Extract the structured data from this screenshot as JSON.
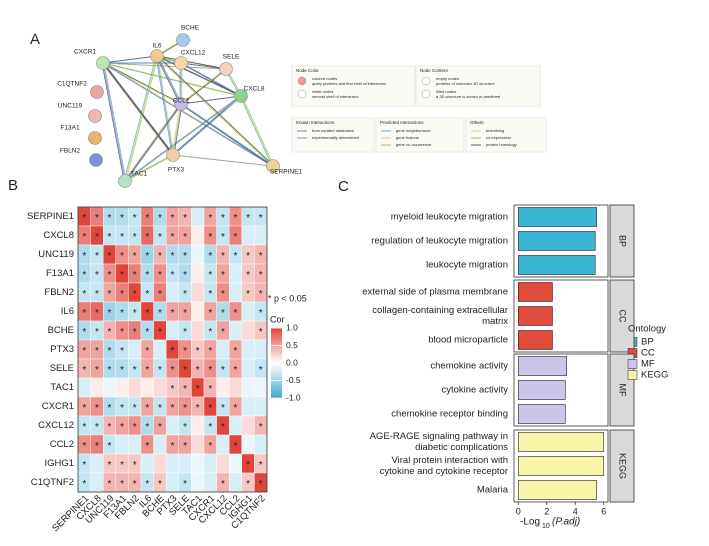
{
  "panels": [
    "A",
    "B",
    "C"
  ],
  "network": {
    "nodes": [
      "BCHE",
      "IL6",
      "CXCR1",
      "CXCL12",
      "SELE",
      "C1QTNF2",
      "CXCL8",
      "UNC119",
      "CCL2",
      "F13A1",
      "FBLN2",
      "PTX3",
      "TAC1",
      "SERPINE1"
    ]
  },
  "network_legend": {
    "groups": [
      {
        "title": "Node Color",
        "items": [
          "colored nodes",
          "query proteins and first shell of interactors",
          "white nodes",
          "second shell of interactors"
        ]
      },
      {
        "title": "Node Content",
        "items": [
          "empty nodes",
          "proteins of unknown 3D structure",
          "filled nodes",
          "a 3D structure is known or predicted"
        ]
      },
      {
        "title": "Known Interactions",
        "items": [
          "from curated databases",
          "experimentally determined"
        ]
      },
      {
        "title": "Predicted Interactions",
        "items": [
          "gene neighborhood",
          "gene fusions",
          "gene co-occurrence"
        ]
      },
      {
        "title": "Others",
        "items": [
          "textmining",
          "co-expression",
          "protein homology"
        ]
      }
    ]
  },
  "chart_data": [
    {
      "type": "heatmap",
      "categories": [
        "SERPINE1",
        "CXCL8",
        "UNC119",
        "F13A1",
        "FBLN2",
        "IL6",
        "BCHE",
        "PTX3",
        "SELE",
        "TAC1",
        "CXCR1",
        "CXCL12",
        "CCL2",
        "IGHG1",
        "C1QTNF2"
      ],
      "values": [
        [
          1,
          0.7,
          -0.4,
          -0.4,
          -0.3,
          0.7,
          -0.4,
          0.5,
          0.4,
          -0.2,
          0.5,
          -0.3,
          0.6,
          -0.3,
          -0.3
        ],
        [
          0.7,
          1,
          -0.3,
          -0.3,
          -0.3,
          0.8,
          -0.3,
          0.5,
          0.5,
          0.1,
          0.6,
          -0.3,
          0.7,
          -0.2,
          -0.2
        ],
        [
          -0.4,
          -0.3,
          1,
          0.6,
          0.5,
          -0.5,
          0.4,
          -0.4,
          -0.4,
          -0.1,
          -0.4,
          0.4,
          -0.3,
          0.3,
          0.4
        ],
        [
          -0.4,
          -0.3,
          0.6,
          1,
          0.7,
          -0.4,
          0.6,
          -0.3,
          -0.4,
          0.1,
          -0.3,
          0.5,
          -0.2,
          0.3,
          0.4
        ],
        [
          -0.3,
          -0.3,
          0.5,
          0.7,
          1,
          -0.3,
          0.7,
          -0.2,
          -0.3,
          0.2,
          -0.3,
          0.6,
          -0.2,
          0.3,
          0.4
        ],
        [
          0.7,
          0.8,
          -0.5,
          -0.4,
          -0.3,
          1,
          -0.4,
          0.5,
          0.5,
          0.1,
          0.5,
          -0.4,
          0.6,
          -0.2,
          -0.3
        ],
        [
          -0.4,
          -0.3,
          0.4,
          0.6,
          0.7,
          -0.4,
          1,
          -0.2,
          -0.3,
          0.2,
          -0.3,
          0.5,
          -0.2,
          0.2,
          0.3
        ],
        [
          0.5,
          0.5,
          -0.4,
          -0.3,
          -0.2,
          0.5,
          -0.2,
          1,
          0.6,
          0.3,
          0.5,
          -0.2,
          0.5,
          -0.2,
          -0.2
        ],
        [
          0.4,
          0.5,
          -0.4,
          -0.4,
          -0.3,
          0.5,
          -0.3,
          0.6,
          1,
          0.4,
          0.6,
          -0.3,
          0.5,
          -0.2,
          -0.3
        ],
        [
          -0.2,
          0.1,
          -0.1,
          0.1,
          0.2,
          0.1,
          0.2,
          0.3,
          0.4,
          1,
          0.4,
          0.1,
          0.2,
          -0.1,
          -0.1
        ],
        [
          0.5,
          0.6,
          -0.4,
          -0.3,
          -0.3,
          0.5,
          -0.3,
          0.5,
          0.6,
          0.4,
          1,
          -0.3,
          0.5,
          -0.2,
          -0.2
        ],
        [
          -0.3,
          -0.3,
          0.4,
          0.5,
          0.6,
          -0.4,
          0.5,
          -0.2,
          -0.3,
          0.1,
          -0.3,
          1,
          -0.2,
          0.2,
          0.4
        ],
        [
          0.6,
          0.7,
          -0.3,
          -0.2,
          -0.2,
          0.6,
          -0.2,
          0.5,
          0.5,
          0.2,
          0.5,
          -0.2,
          1,
          -0.1,
          -0.2
        ],
        [
          -0.3,
          -0.2,
          0.3,
          0.3,
          0.3,
          -0.2,
          0.2,
          -0.2,
          -0.2,
          -0.1,
          -0.2,
          0.2,
          -0.1,
          1,
          0.3
        ],
        [
          -0.3,
          -0.2,
          0.4,
          0.4,
          0.4,
          -0.3,
          0.3,
          -0.2,
          -0.3,
          -0.1,
          -0.2,
          0.4,
          -0.2,
          0.3,
          1
        ]
      ],
      "significant": [
        [
          1,
          1,
          1,
          1,
          1,
          1,
          1,
          1,
          1,
          0,
          1,
          1,
          1,
          1,
          1
        ],
        [
          1,
          1,
          1,
          1,
          1,
          1,
          1,
          1,
          1,
          0,
          1,
          1,
          1,
          0,
          0
        ],
        [
          1,
          1,
          1,
          1,
          1,
          1,
          1,
          1,
          1,
          0,
          1,
          1,
          1,
          1,
          1
        ],
        [
          1,
          1,
          1,
          1,
          1,
          1,
          1,
          1,
          1,
          0,
          1,
          1,
          0,
          1,
          1
        ],
        [
          1,
          1,
          1,
          1,
          1,
          1,
          1,
          0,
          1,
          0,
          1,
          1,
          0,
          1,
          1
        ],
        [
          1,
          1,
          1,
          1,
          1,
          1,
          1,
          1,
          1,
          0,
          1,
          1,
          1,
          0,
          1
        ],
        [
          1,
          1,
          1,
          1,
          1,
          1,
          1,
          0,
          1,
          0,
          1,
          1,
          0,
          0,
          1
        ],
        [
          1,
          1,
          1,
          1,
          0,
          1,
          0,
          1,
          1,
          1,
          1,
          0,
          1,
          0,
          0
        ],
        [
          1,
          1,
          1,
          1,
          1,
          1,
          1,
          1,
          1,
          1,
          1,
          1,
          1,
          0,
          1
        ],
        [
          0,
          0,
          0,
          0,
          0,
          0,
          0,
          1,
          1,
          1,
          1,
          0,
          0,
          0,
          0
        ],
        [
          1,
          1,
          1,
          1,
          1,
          1,
          1,
          1,
          1,
          1,
          1,
          1,
          1,
          0,
          0
        ],
        [
          1,
          1,
          1,
          1,
          1,
          1,
          1,
          0,
          1,
          0,
          1,
          1,
          0,
          0,
          1
        ],
        [
          1,
          1,
          1,
          0,
          0,
          1,
          0,
          1,
          1,
          0,
          1,
          0,
          1,
          0,
          0
        ],
        [
          1,
          0,
          1,
          1,
          1,
          0,
          0,
          0,
          0,
          0,
          0,
          0,
          0,
          1,
          1
        ],
        [
          1,
          0,
          1,
          1,
          1,
          1,
          1,
          0,
          1,
          0,
          0,
          1,
          0,
          1,
          1
        ]
      ],
      "star_label": "*",
      "significance_note": "* p < 0.05",
      "colorbar_title": "Cor",
      "colors": [
        "#3aa8d2",
        "#ffffff",
        "#e2463b"
      ],
      "zlim": [
        -1,
        1
      ],
      "zticks": [
        {
          "value": 1,
          "label": "1.0"
        },
        0.5,
        {
          "value": 0,
          "label": "0.0"
        },
        -0.5,
        {
          "value": -1,
          "label": "-1.0"
        }
      ]
    },
    {
      "type": "bar",
      "orientation": "horizontal",
      "x_label": [
        "-Log",
        "10",
        "(P.adj)"
      ],
      "legend_title": "Ontology",
      "xlim": [
        -0.3,
        6.3
      ],
      "xticks": [
        0,
        2,
        4,
        6
      ],
      "series": [
        {
          "name": "BP",
          "color": "#3db6d6",
          "categories": [
            [
              "myeloid leukocyte migration"
            ],
            [
              "regulation of leukocyte migration"
            ],
            [
              "leukocyte migration"
            ]
          ],
          "values": [
            5.5,
            5.4,
            5.4
          ]
        },
        {
          "name": "CC",
          "color": "#e04b3c",
          "categories": [
            [
              "external side of plasma membrane"
            ],
            [
              "collagen-containing extracellular",
              "matrix"
            ],
            [
              "blood microparticle"
            ]
          ],
          "values": [
            2.4,
            2.4,
            2.4
          ]
        },
        {
          "name": "MF",
          "color": "#c9c6ea",
          "categories": [
            [
              "chemokine activity"
            ],
            [
              "cytokine activity"
            ],
            [
              "chemokine receptor binding"
            ]
          ],
          "values": [
            3.4,
            3.3,
            3.3
          ]
        },
        {
          "name": "KEGG",
          "color": "#f8f4a8",
          "categories": [
            [
              "AGE-RAGE signaling pathway in",
              "diabetic complications"
            ],
            [
              "Viral protein interaction with",
              "cytokine and cytokine receptor"
            ],
            [
              "Malaria"
            ]
          ],
          "values": [
            6.0,
            6.0,
            5.5
          ]
        }
      ]
    }
  ]
}
